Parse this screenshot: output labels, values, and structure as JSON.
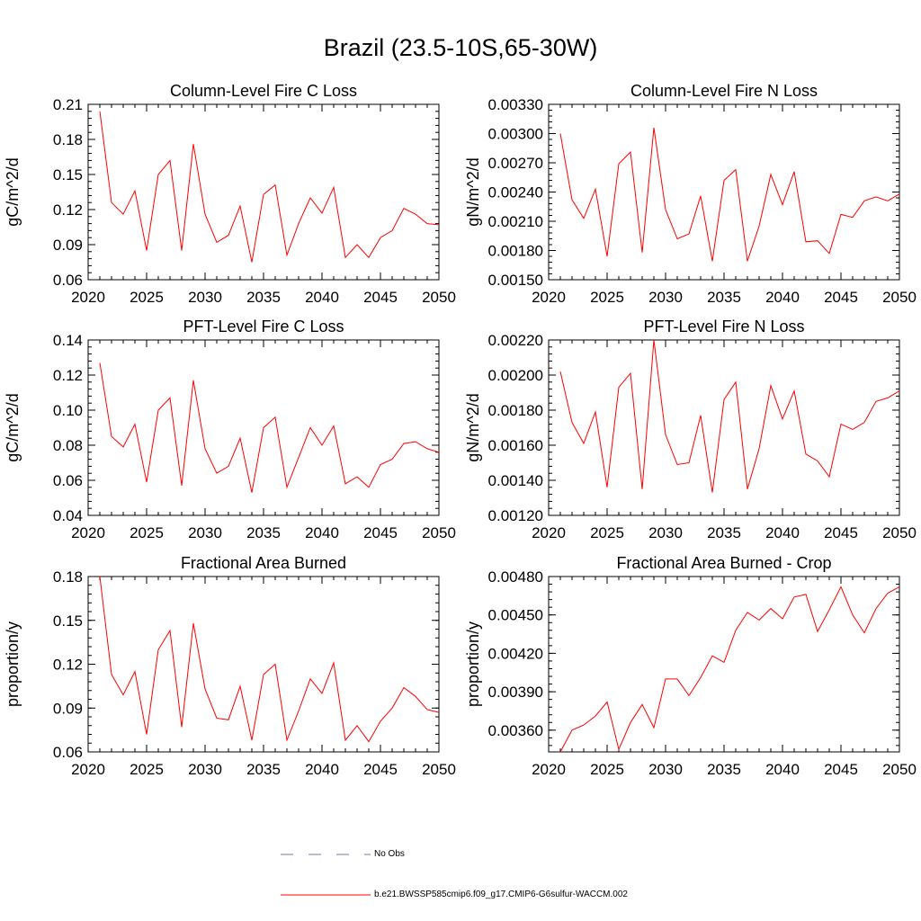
{
  "title": "Brazil (23.5-10S,65-30W)",
  "line_color": "#ff0000",
  "obs_color": "#7777aa",
  "legend": {
    "obs_label": "No Obs",
    "model_label": "b.e21.BWSSP585cmip6.f09_g17.CMIP6-G6sulfur-WACCM.002"
  },
  "chart_data": [
    {
      "type": "line",
      "title": "Column-Level Fire C Loss",
      "ylabel": "gC/m^2/d",
      "xlim": [
        2020,
        2050
      ],
      "xticks": [
        "2020",
        "2025",
        "2030",
        "2035",
        "2040",
        "2045",
        "2050"
      ],
      "ylim": [
        0.06,
        0.21
      ],
      "yticks": [
        "0.06",
        "0.09",
        "0.12",
        "0.15",
        "0.18",
        "0.21"
      ],
      "x": [
        2021,
        2022,
        2023,
        2024,
        2025,
        2026,
        2027,
        2028,
        2029,
        2030,
        2031,
        2032,
        2033,
        2034,
        2035,
        2036,
        2037,
        2038,
        2039,
        2040,
        2041,
        2042,
        2043,
        2044,
        2045,
        2046,
        2047,
        2048,
        2049,
        2050
      ],
      "values": [
        0.204,
        0.126,
        0.116,
        0.136,
        0.085,
        0.15,
        0.162,
        0.085,
        0.176,
        0.116,
        0.092,
        0.098,
        0.123,
        0.075,
        0.133,
        0.141,
        0.081,
        0.108,
        0.13,
        0.117,
        0.139,
        0.079,
        0.09,
        0.079,
        0.096,
        0.102,
        0.121,
        0.116,
        0.108,
        0.107
      ]
    },
    {
      "type": "line",
      "title": "Column-Level Fire N Loss",
      "ylabel": "gN/m^2/d",
      "xlim": [
        2020,
        2050
      ],
      "xticks": [
        "2020",
        "2025",
        "2030",
        "2035",
        "2040",
        "2045",
        "2050"
      ],
      "ylim": [
        0.0015,
        0.0033
      ],
      "yticks": [
        "0.00150",
        "0.00180",
        "0.00210",
        "0.00240",
        "0.00270",
        "0.00300",
        "0.00330"
      ],
      "x": [
        2021,
        2022,
        2023,
        2024,
        2025,
        2026,
        2027,
        2028,
        2029,
        2030,
        2031,
        2032,
        2033,
        2034,
        2035,
        2036,
        2037,
        2038,
        2039,
        2040,
        2041,
        2042,
        2043,
        2044,
        2045,
        2046,
        2047,
        2048,
        2049,
        2050
      ],
      "values": [
        0.003,
        0.00232,
        0.00213,
        0.00243,
        0.00174,
        0.00269,
        0.00281,
        0.00178,
        0.00306,
        0.00222,
        0.00192,
        0.00197,
        0.00236,
        0.00169,
        0.00252,
        0.00263,
        0.00169,
        0.00205,
        0.00258,
        0.00227,
        0.00261,
        0.00189,
        0.0019,
        0.00177,
        0.00217,
        0.00214,
        0.00231,
        0.00235,
        0.00231,
        0.00238
      ]
    },
    {
      "type": "line",
      "title": "PFT-Level Fire C Loss",
      "ylabel": "gC/m^2/d",
      "xlim": [
        2020,
        2050
      ],
      "xticks": [
        "2020",
        "2025",
        "2030",
        "2035",
        "2040",
        "2045",
        "2050"
      ],
      "ylim": [
        0.04,
        0.14
      ],
      "yticks": [
        "0.04",
        "0.06",
        "0.08",
        "0.10",
        "0.12",
        "0.14"
      ],
      "x": [
        2021,
        2022,
        2023,
        2024,
        2025,
        2026,
        2027,
        2028,
        2029,
        2030,
        2031,
        2032,
        2033,
        2034,
        2035,
        2036,
        2037,
        2038,
        2039,
        2040,
        2041,
        2042,
        2043,
        2044,
        2045,
        2046,
        2047,
        2048,
        2049,
        2050
      ],
      "values": [
        0.127,
        0.085,
        0.079,
        0.092,
        0.059,
        0.1,
        0.107,
        0.057,
        0.117,
        0.078,
        0.064,
        0.068,
        0.084,
        0.053,
        0.09,
        0.096,
        0.056,
        0.073,
        0.09,
        0.08,
        0.091,
        0.058,
        0.062,
        0.056,
        0.069,
        0.072,
        0.081,
        0.082,
        0.078,
        0.076
      ]
    },
    {
      "type": "line",
      "title": "PFT-Level Fire N Loss",
      "ylabel": "gN/m^2/d",
      "xlim": [
        2020,
        2050
      ],
      "xticks": [
        "2020",
        "2025",
        "2030",
        "2035",
        "2040",
        "2045",
        "2050"
      ],
      "ylim": [
        0.0012,
        0.0022
      ],
      "yticks": [
        "0.00120",
        "0.00140",
        "0.00160",
        "0.00180",
        "0.00200",
        "0.00220"
      ],
      "x": [
        2021,
        2022,
        2023,
        2024,
        2025,
        2026,
        2027,
        2028,
        2029,
        2030,
        2031,
        2032,
        2033,
        2034,
        2035,
        2036,
        2037,
        2038,
        2039,
        2040,
        2041,
        2042,
        2043,
        2044,
        2045,
        2046,
        2047,
        2048,
        2049,
        2050
      ],
      "values": [
        0.00202,
        0.00173,
        0.00161,
        0.00179,
        0.00136,
        0.00193,
        0.00201,
        0.00135,
        0.0022,
        0.00166,
        0.00149,
        0.0015,
        0.00177,
        0.00133,
        0.00186,
        0.00196,
        0.00135,
        0.00158,
        0.00194,
        0.00175,
        0.00191,
        0.00155,
        0.00151,
        0.00142,
        0.00172,
        0.00169,
        0.00173,
        0.00185,
        0.00187,
        0.00191
      ]
    },
    {
      "type": "line",
      "title": "Fractional Area Burned",
      "ylabel": "proportion/y",
      "xlim": [
        2020,
        2050
      ],
      "xticks": [
        "2020",
        "2025",
        "2030",
        "2035",
        "2040",
        "2045",
        "2050"
      ],
      "ylim": [
        0.06,
        0.18
      ],
      "yticks": [
        "0.06",
        "0.09",
        "0.12",
        "0.15",
        "0.18"
      ],
      "x": [
        2021,
        2022,
        2023,
        2024,
        2025,
        2026,
        2027,
        2028,
        2029,
        2030,
        2031,
        2032,
        2033,
        2034,
        2035,
        2036,
        2037,
        2038,
        2039,
        2040,
        2041,
        2042,
        2043,
        2044,
        2045,
        2046,
        2047,
        2048,
        2049,
        2050
      ],
      "values": [
        0.18,
        0.113,
        0.099,
        0.115,
        0.072,
        0.13,
        0.143,
        0.077,
        0.148,
        0.103,
        0.083,
        0.082,
        0.105,
        0.068,
        0.113,
        0.12,
        0.068,
        0.088,
        0.11,
        0.1,
        0.121,
        0.068,
        0.078,
        0.067,
        0.081,
        0.09,
        0.104,
        0.098,
        0.089,
        0.087
      ]
    },
    {
      "type": "line",
      "title": "Fractional Area Burned - Crop",
      "ylabel": "proportion/y",
      "xlim": [
        2020,
        2050
      ],
      "xticks": [
        "2020",
        "2025",
        "2030",
        "2035",
        "2040",
        "2045",
        "2050"
      ],
      "ylim": [
        0.00343,
        0.0048
      ],
      "yticks": [
        "0.00360",
        "0.00390",
        "0.00420",
        "0.00450",
        "0.00480"
      ],
      "x": [
        2021,
        2022,
        2023,
        2024,
        2025,
        2026,
        2027,
        2028,
        2029,
        2030,
        2031,
        2032,
        2033,
        2034,
        2035,
        2036,
        2037,
        2038,
        2039,
        2040,
        2041,
        2042,
        2043,
        2044,
        2045,
        2046,
        2047,
        2048,
        2049,
        2050
      ],
      "values": [
        0.00343,
        0.0036,
        0.00364,
        0.00371,
        0.00382,
        0.00345,
        0.00366,
        0.0038,
        0.00362,
        0.004,
        0.004,
        0.00387,
        0.00401,
        0.00418,
        0.00413,
        0.00438,
        0.00452,
        0.00446,
        0.00455,
        0.00447,
        0.00464,
        0.00466,
        0.00437,
        0.00454,
        0.00472,
        0.0045,
        0.00436,
        0.00455,
        0.00467,
        0.00472
      ]
    }
  ]
}
